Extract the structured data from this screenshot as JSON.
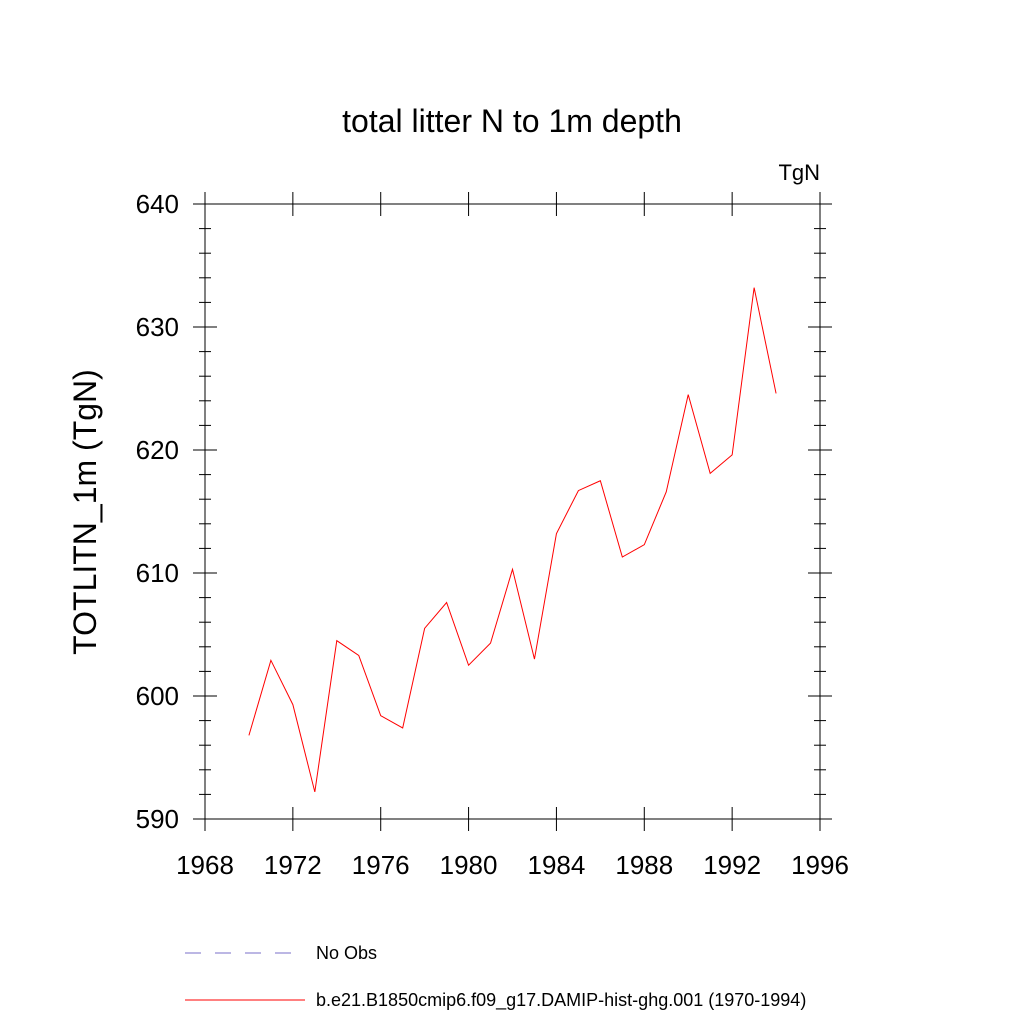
{
  "chart_data": {
    "type": "line",
    "title": "total litter N to 1m depth",
    "units_label": "TgN",
    "xlabel": "",
    "ylabel": "TOTLITN_1m  (TgN)",
    "xlim": [
      1968,
      1996
    ],
    "ylim": [
      590,
      640
    ],
    "x_ticks": [
      1968,
      1972,
      1976,
      1980,
      1984,
      1988,
      1992,
      1996
    ],
    "y_ticks": [
      590,
      600,
      610,
      620,
      630,
      640
    ],
    "grid": false,
    "legend_position": "bottom",
    "series": [
      {
        "name": "No Obs",
        "style": "dashed",
        "color": "#7a6fc9",
        "x": [],
        "values": []
      },
      {
        "name": "b.e21.B1850cmip6.f09_g17.DAMIP-hist-ghg.001 (1970-1994)",
        "style": "solid",
        "color": "#ff0000",
        "x": [
          1970,
          1971,
          1972,
          1973,
          1974,
          1975,
          1976,
          1977,
          1978,
          1979,
          1980,
          1981,
          1982,
          1983,
          1984,
          1985,
          1986,
          1987,
          1988,
          1989,
          1990,
          1991,
          1992,
          1993,
          1994
        ],
        "values": [
          596.8,
          602.9,
          599.3,
          592.2,
          604.5,
          603.3,
          598.4,
          597.4,
          605.5,
          607.6,
          602.5,
          604.3,
          610.3,
          603.0,
          613.2,
          616.7,
          617.5,
          611.3,
          612.3,
          616.6,
          624.5,
          618.1,
          619.6,
          633.2,
          624.6
        ]
      }
    ]
  }
}
